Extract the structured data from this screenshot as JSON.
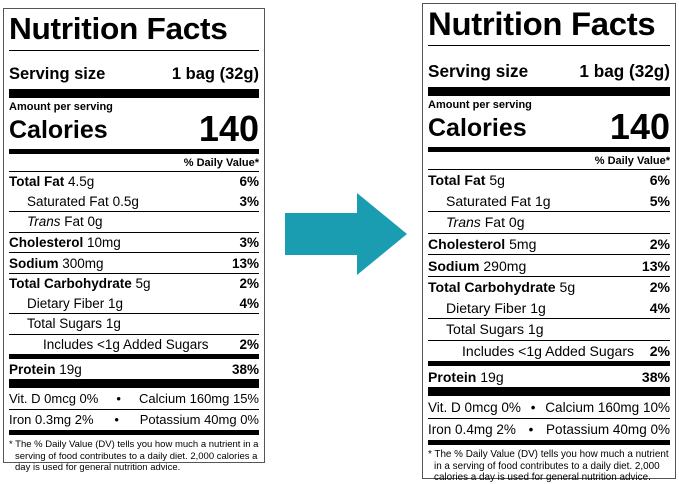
{
  "arrow_color": "#1a9db0",
  "labels": [
    {
      "title": "Nutrition Facts",
      "serving_label": "Serving size",
      "serving_value": "1 bag (32g)",
      "amount_per_serving": "Amount per serving",
      "calories_label": "Calories",
      "calories_value": "140",
      "dv_header": "% Daily Value*",
      "nutrients": [
        {
          "name": "Total Fat",
          "amount": "4.5g",
          "dv": "6%",
          "bold": true,
          "indent": 0
        },
        {
          "name": "Saturated Fat",
          "amount": "0.5g",
          "dv": "3%",
          "bold": false,
          "indent": 1
        },
        {
          "name": "Trans",
          "name_suffix": " Fat",
          "amount": "0g",
          "dv": "",
          "bold": false,
          "indent": 1,
          "italic": true
        },
        {
          "name": "Cholesterol",
          "amount": "10mg",
          "dv": "3%",
          "bold": true,
          "indent": 0
        },
        {
          "name": "Sodium",
          "amount": "300mg",
          "dv": "13%",
          "bold": true,
          "indent": 0
        },
        {
          "name": "Total Carbohydrate",
          "amount": "5g",
          "dv": "2%",
          "bold": true,
          "indent": 0
        },
        {
          "name": "Dietary Fiber",
          "amount": "1g",
          "dv": "4%",
          "bold": false,
          "indent": 1
        },
        {
          "name": "Total Sugars",
          "amount": "1g",
          "dv": "",
          "bold": false,
          "indent": 1
        },
        {
          "name": "Includes <1g Added Sugars",
          "amount": "",
          "dv": "2%",
          "bold": false,
          "indent": 2
        },
        {
          "name": "Protein",
          "amount": "19g",
          "dv": "38%",
          "bold": true,
          "indent": 0
        }
      ],
      "minerals": [
        [
          "Vit. D 0mcg 0%",
          "•",
          "Calcium 160mg 15%"
        ],
        [
          "Iron 0.3mg 2%",
          "•",
          "Potassium 40mg 0%"
        ]
      ],
      "footnote": "* The % Daily Value (DV) tells you how much a nutrient in a serving of food contributes to a daily diet. 2,000 calories a day is used for general nutrition advice."
    },
    {
      "title": "Nutrition Facts",
      "serving_label": "Serving size",
      "serving_value": "1 bag (32g)",
      "amount_per_serving": "Amount per serving",
      "calories_label": "Calories",
      "calories_value": "140",
      "dv_header": "% Daily Value*",
      "nutrients": [
        {
          "name": "Total Fat",
          "amount": "5g",
          "dv": "6%",
          "bold": true,
          "indent": 0
        },
        {
          "name": "Saturated Fat",
          "amount": "1g",
          "dv": "5%",
          "bold": false,
          "indent": 1
        },
        {
          "name": "Trans",
          "name_suffix": " Fat",
          "amount": "0g",
          "dv": "",
          "bold": false,
          "indent": 1,
          "italic": true
        },
        {
          "name": "Cholesterol",
          "amount": "5mg",
          "dv": "2%",
          "bold": true,
          "indent": 0
        },
        {
          "name": "Sodium",
          "amount": "290mg",
          "dv": "13%",
          "bold": true,
          "indent": 0
        },
        {
          "name": "Total Carbohydrate",
          "amount": "5g",
          "dv": "2%",
          "bold": true,
          "indent": 0
        },
        {
          "name": "Dietary Fiber",
          "amount": "1g",
          "dv": "4%",
          "bold": false,
          "indent": 1
        },
        {
          "name": "Total Sugars",
          "amount": "1g",
          "dv": "",
          "bold": false,
          "indent": 1
        },
        {
          "name": "Includes <1g Added Sugars",
          "amount": "",
          "dv": "2%",
          "bold": false,
          "indent": 2
        },
        {
          "name": "Protein",
          "amount": "19g",
          "dv": "38%",
          "bold": true,
          "indent": 0
        }
      ],
      "minerals": [
        [
          "Vit. D 0mcg 0%",
          "•",
          "Calcium 160mg 10%"
        ],
        [
          "Iron 0.4mg 2%",
          "•",
          "Potassium 40mg 0%"
        ]
      ],
      "footnote": "* The % Daily Value (DV) tells you how much a nutrient in a serving of food contributes to a daily diet. 2,000 calories a day is used for general nutrition advice."
    }
  ]
}
